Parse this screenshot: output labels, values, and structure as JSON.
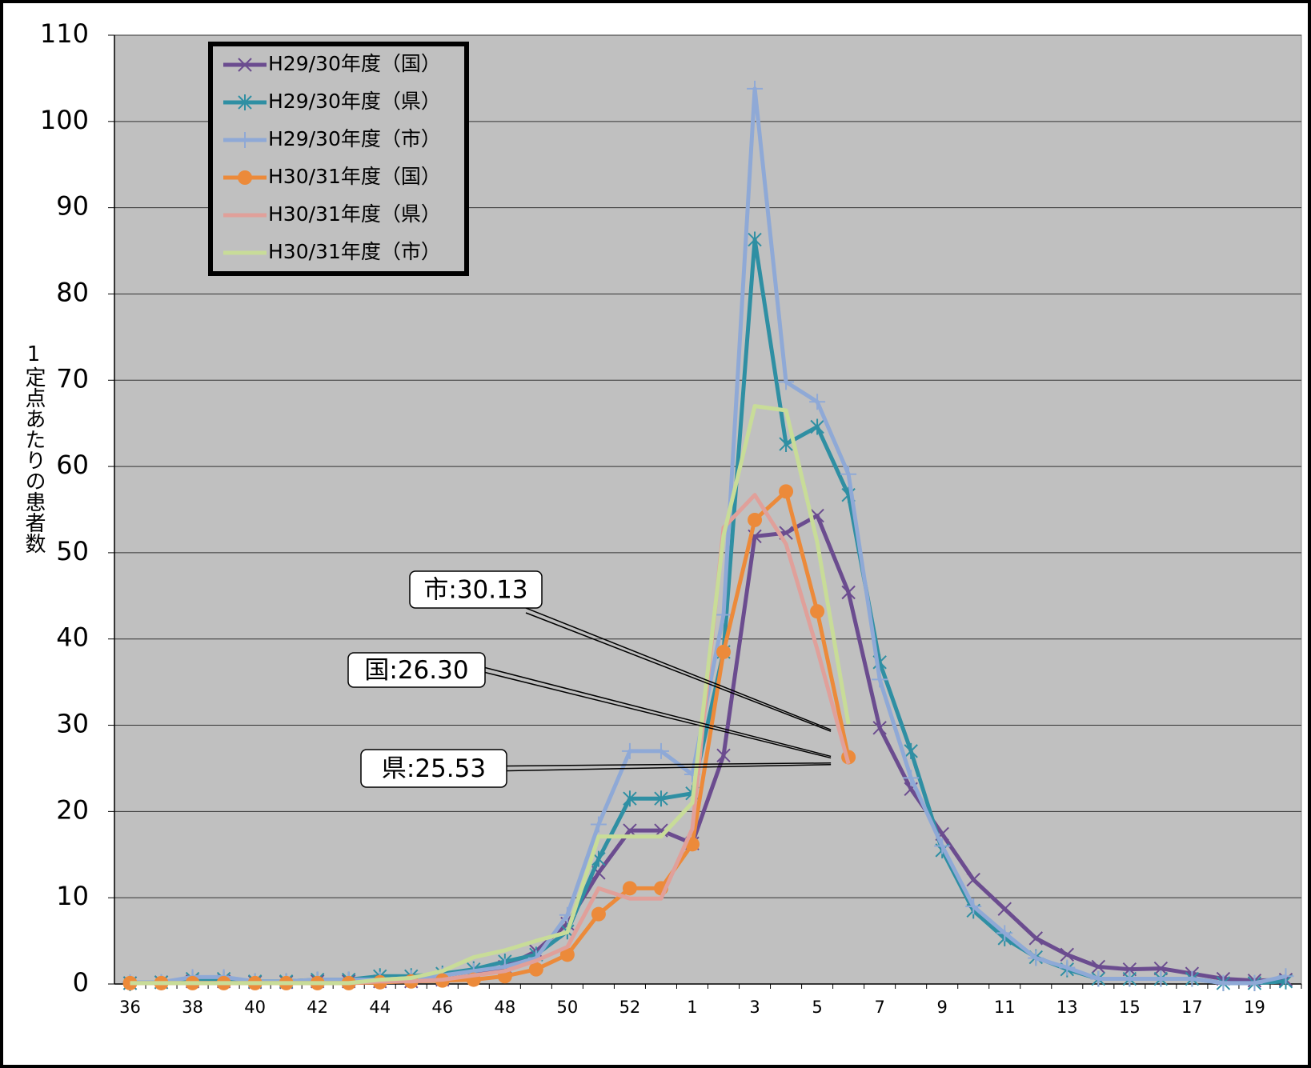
{
  "chart_data": {
    "type": "line",
    "y_label": "1定点あたりの患者数",
    "categories": [
      "36",
      null,
      "38",
      null,
      "40",
      null,
      "42",
      null,
      "44",
      null,
      "46",
      null,
      "48",
      null,
      "50",
      null,
      "52",
      null,
      "1",
      null,
      "3",
      null,
      "5",
      null,
      "7",
      null,
      "9",
      null,
      "11",
      null,
      "13",
      null,
      "15",
      null,
      "17",
      null,
      "19",
      null
    ],
    "ylim": [
      0,
      110
    ],
    "yticks": [
      0,
      10,
      20,
      30,
      40,
      50,
      60,
      70,
      80,
      90,
      100,
      110
    ],
    "grid": true,
    "legend": "top-left",
    "series": [
      {
        "name": "H29/30年度（国）",
        "color": "#6b4c8f",
        "marker": "x",
        "values": [
          0.1,
          0.2,
          0.3,
          0.3,
          0.2,
          0.2,
          0.3,
          0.3,
          0.3,
          0.3,
          0.5,
          1.0,
          2.0,
          3.8,
          7.0,
          12.9,
          17.8,
          17.8,
          16.3,
          26.5,
          51.9,
          52.3,
          54.3,
          45.4,
          29.7,
          22.6,
          17.4,
          12.1,
          8.7,
          5.3,
          3.4,
          2.0,
          1.7,
          1.8,
          1.2,
          0.6,
          0.4,
          0.5
        ]
      },
      {
        "name": "H29/30年度（県）",
        "color": "#2f8fa3",
        "marker": "asterisk",
        "values": [
          0.1,
          0.2,
          0.6,
          0.6,
          0.3,
          0.3,
          0.5,
          0.5,
          0.9,
          0.9,
          1.2,
          1.7,
          2.6,
          3.4,
          6.1,
          14.5,
          21.5,
          21.5,
          22.1,
          38.5,
          86.3,
          62.6,
          64.6,
          56.7,
          37.3,
          27.0,
          15.5,
          8.5,
          5.3,
          3.1,
          1.7,
          0.6,
          0.6,
          0.6,
          0.6,
          0.1,
          0.1,
          0.3
        ]
      },
      {
        "name": "H29/30年度（市）",
        "color": "#8fa9d6",
        "marker": "plus",
        "values": [
          0.2,
          0.2,
          0.8,
          0.8,
          0.3,
          0.3,
          0.5,
          0.5,
          0.5,
          0.7,
          1.0,
          1.5,
          2.0,
          3.0,
          8.0,
          18.5,
          27.0,
          27.0,
          24.3,
          42.8,
          103.8,
          69.8,
          67.5,
          59.1,
          35.3,
          23.9,
          16.0,
          9.0,
          5.9,
          3.0,
          1.9,
          0.6,
          0.6,
          0.6,
          0.6,
          0.1,
          0.1,
          0.9
        ]
      },
      {
        "name": "H30/31年度（国）",
        "color": "#ec8a3a",
        "marker": "circle",
        "values": [
          0.1,
          0.1,
          0.1,
          0.1,
          0.1,
          0.1,
          0.1,
          0.1,
          0.2,
          0.3,
          0.4,
          0.5,
          0.9,
          1.7,
          3.4,
          8.1,
          11.1,
          11.1,
          16.2,
          38.5,
          53.8,
          57.1,
          43.2,
          26.3,
          null,
          null,
          null,
          null,
          null,
          null,
          null,
          null,
          null,
          null,
          null,
          null,
          null,
          null
        ]
      },
      {
        "name": "H30/31年度（県）",
        "color": "#e0a09a",
        "marker": "none",
        "values": [
          0.1,
          0.1,
          0.1,
          0.1,
          0.1,
          0.1,
          0.1,
          0.1,
          0.3,
          0.3,
          0.5,
          1.0,
          1.5,
          2.7,
          4.3,
          11.1,
          9.9,
          9.9,
          18.0,
          52.9,
          56.7,
          51.0,
          38.8,
          25.53,
          null,
          null,
          null,
          null,
          null,
          null,
          null,
          null,
          null,
          null,
          null,
          null,
          null,
          null
        ]
      },
      {
        "name": "H30/31年度（市）",
        "color": "#c8dc98",
        "marker": "none",
        "values": [
          0.1,
          0.1,
          0.1,
          0.1,
          0.1,
          0.1,
          0.1,
          0.1,
          0.5,
          0.7,
          1.5,
          3.1,
          3.9,
          5.0,
          6.0,
          17.1,
          17.1,
          17.1,
          21.0,
          52.0,
          67.0,
          66.5,
          51.2,
          30.13,
          null,
          null,
          null,
          null,
          null,
          null,
          null,
          null,
          null,
          null,
          null,
          null,
          null,
          null
        ]
      }
    ],
    "annotations": [
      "市:30.13",
      "国:26.30",
      "県:25.53"
    ]
  }
}
